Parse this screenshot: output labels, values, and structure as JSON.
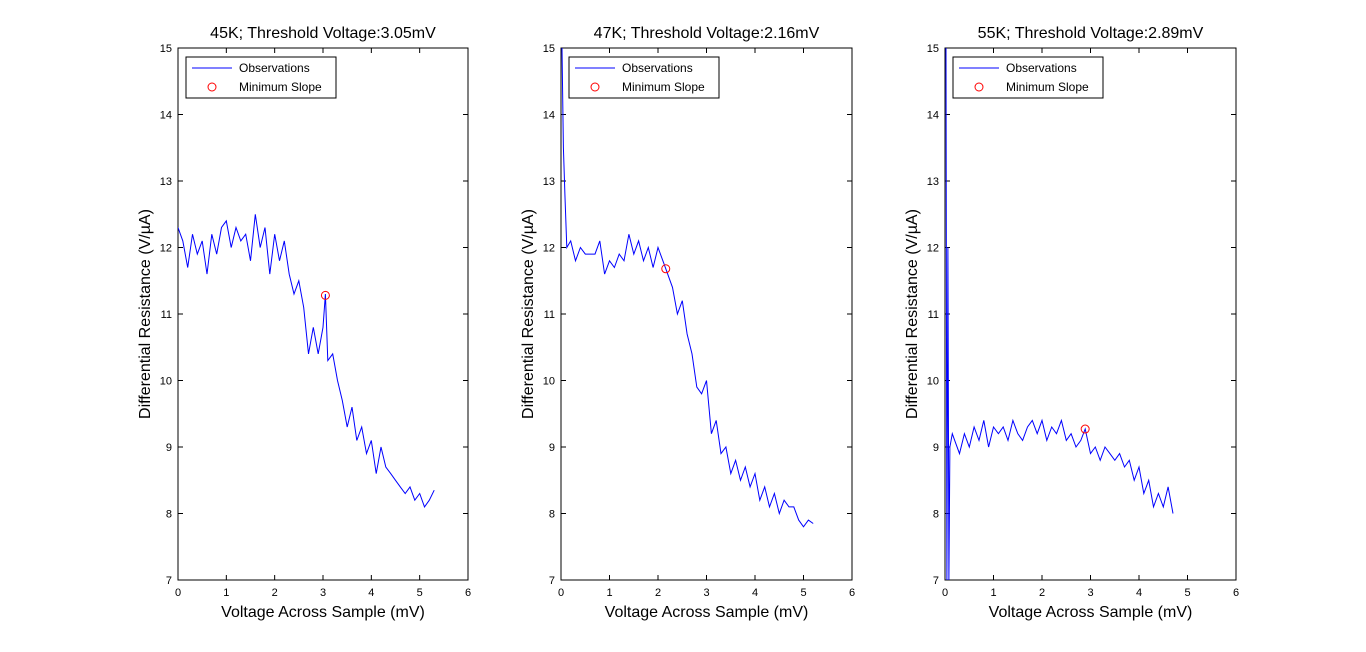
{
  "colors": {
    "observations": "#0000ff",
    "minimum_slope": "#ff0000",
    "axes": "#000000",
    "background": "#ffffff"
  },
  "chart_data": [
    {
      "type": "line",
      "title": "45K; Threshold Voltage:3.05mV",
      "xlabel": "Voltage Across Sample (mV)",
      "ylabel": "Differential Resistance (V/µA)",
      "xlim": [
        0,
        6
      ],
      "ylim": [
        7,
        15
      ],
      "xticks": [
        0,
        1,
        2,
        3,
        4,
        5,
        6
      ],
      "yticks": [
        7,
        8,
        9,
        10,
        11,
        12,
        13,
        14,
        15
      ],
      "legend": [
        "Observations",
        "Minimum Slope"
      ],
      "legend_position": "top-left",
      "series": [
        {
          "name": "Observations",
          "x": [
            0,
            0.1,
            0.2,
            0.3,
            0.4,
            0.5,
            0.6,
            0.7,
            0.8,
            0.9,
            1.0,
            1.1,
            1.2,
            1.3,
            1.4,
            1.5,
            1.6,
            1.7,
            1.8,
            1.9,
            2.0,
            2.1,
            2.2,
            2.3,
            2.4,
            2.5,
            2.6,
            2.7,
            2.8,
            2.9,
            3.0,
            3.05,
            3.1,
            3.2,
            3.3,
            3.4,
            3.5,
            3.6,
            3.7,
            3.8,
            3.9,
            4.0,
            4.1,
            4.2,
            4.3,
            4.4,
            4.5,
            4.6,
            4.7,
            4.8,
            4.9,
            5.0,
            5.1,
            5.2,
            5.3
          ],
          "y": [
            12.3,
            12.1,
            11.7,
            12.2,
            11.9,
            12.1,
            11.6,
            12.2,
            11.9,
            12.3,
            12.4,
            12.0,
            12.3,
            12.1,
            12.2,
            11.8,
            12.5,
            12.0,
            12.3,
            11.6,
            12.2,
            11.8,
            12.1,
            11.6,
            11.3,
            11.5,
            11.1,
            10.4,
            10.8,
            10.4,
            10.8,
            11.3,
            10.3,
            10.4,
            10.0,
            9.7,
            9.3,
            9.6,
            9.1,
            9.3,
            8.9,
            9.1,
            8.6,
            9.0,
            8.7,
            8.6,
            8.5,
            8.4,
            8.3,
            8.4,
            8.2,
            8.3,
            8.1,
            8.2,
            8.35
          ]
        },
        {
          "name": "Minimum Slope",
          "type": "scatter",
          "x": [
            3.05
          ],
          "y": [
            11.28
          ]
        }
      ]
    },
    {
      "type": "line",
      "title": "47K; Threshold Voltage:2.16mV",
      "xlabel": "Voltage Across Sample (mV)",
      "ylabel": "Differential Resistance (V/µA)",
      "xlim": [
        0,
        6
      ],
      "ylim": [
        7,
        15
      ],
      "xticks": [
        0,
        1,
        2,
        3,
        4,
        5,
        6
      ],
      "yticks": [
        7,
        8,
        9,
        10,
        11,
        12,
        13,
        14,
        15
      ],
      "legend": [
        "Observations",
        "Minimum Slope"
      ],
      "legend_position": "top-left",
      "series": [
        {
          "name": "Observations",
          "x": [
            0.02,
            0.05,
            0.08,
            0.12,
            0.2,
            0.3,
            0.4,
            0.5,
            0.6,
            0.7,
            0.8,
            0.9,
            1.0,
            1.1,
            1.2,
            1.3,
            1.4,
            1.5,
            1.6,
            1.7,
            1.8,
            1.9,
            2.0,
            2.1,
            2.16,
            2.3,
            2.4,
            2.5,
            2.6,
            2.7,
            2.8,
            2.9,
            3.0,
            3.1,
            3.2,
            3.3,
            3.4,
            3.5,
            3.6,
            3.7,
            3.8,
            3.9,
            4.0,
            4.1,
            4.2,
            4.3,
            4.4,
            4.5,
            4.6,
            4.7,
            4.8,
            4.9,
            5.0,
            5.1,
            5.2
          ],
          "y": [
            15.0,
            13.5,
            12.8,
            12.0,
            12.1,
            11.8,
            12.0,
            11.9,
            11.9,
            11.9,
            12.1,
            11.6,
            11.8,
            11.7,
            11.9,
            11.8,
            12.2,
            11.9,
            12.1,
            11.8,
            12.0,
            11.7,
            12.0,
            11.8,
            11.68,
            11.4,
            11.0,
            11.2,
            10.7,
            10.4,
            9.9,
            9.8,
            10.0,
            9.2,
            9.4,
            8.9,
            9.0,
            8.6,
            8.8,
            8.5,
            8.7,
            8.4,
            8.6,
            8.2,
            8.4,
            8.1,
            8.3,
            8.0,
            8.2,
            8.1,
            8.1,
            7.9,
            7.8,
            7.9,
            7.85
          ]
        },
        {
          "name": "Minimum Slope",
          "type": "scatter",
          "x": [
            2.16
          ],
          "y": [
            11.68
          ]
        }
      ]
    },
    {
      "type": "line",
      "title": "55K; Threshold Voltage:2.89mV",
      "xlabel": "Voltage Across Sample (mV)",
      "ylabel": "Differential Resistance (V/µA)",
      "xlim": [
        0,
        6
      ],
      "ylim": [
        7,
        15
      ],
      "xticks": [
        0,
        1,
        2,
        3,
        4,
        5,
        6
      ],
      "yticks": [
        7,
        8,
        9,
        10,
        11,
        12,
        13,
        14,
        15
      ],
      "legend": [
        "Observations",
        "Minimum Slope"
      ],
      "legend_position": "top-left",
      "series": [
        {
          "name": "Observations",
          "x": [
            0.02,
            0.04,
            0.06,
            0.08,
            0.1,
            0.15,
            0.2,
            0.3,
            0.4,
            0.5,
            0.6,
            0.7,
            0.8,
            0.9,
            1.0,
            1.1,
            1.2,
            1.3,
            1.4,
            1.5,
            1.6,
            1.7,
            1.8,
            1.9,
            2.0,
            2.1,
            2.2,
            2.3,
            2.4,
            2.5,
            2.6,
            2.7,
            2.8,
            2.89,
            3.0,
            3.1,
            3.2,
            3.3,
            3.4,
            3.5,
            3.6,
            3.7,
            3.8,
            3.9,
            4.0,
            4.1,
            4.2,
            4.3,
            4.4,
            4.5,
            4.6,
            4.7
          ],
          "y": [
            15.0,
            7.0,
            12.0,
            7.0,
            9.0,
            9.2,
            9.1,
            8.9,
            9.2,
            9.0,
            9.3,
            9.1,
            9.4,
            9.0,
            9.3,
            9.2,
            9.3,
            9.1,
            9.4,
            9.2,
            9.1,
            9.3,
            9.4,
            9.2,
            9.4,
            9.1,
            9.3,
            9.2,
            9.4,
            9.1,
            9.2,
            9.0,
            9.1,
            9.27,
            8.9,
            9.0,
            8.8,
            9.0,
            8.9,
            8.8,
            8.9,
            8.7,
            8.8,
            8.5,
            8.7,
            8.3,
            8.5,
            8.1,
            8.3,
            8.1,
            8.4,
            8.0
          ]
        },
        {
          "name": "Minimum Slope",
          "type": "scatter",
          "x": [
            2.89
          ],
          "y": [
            9.27
          ]
        }
      ]
    }
  ]
}
